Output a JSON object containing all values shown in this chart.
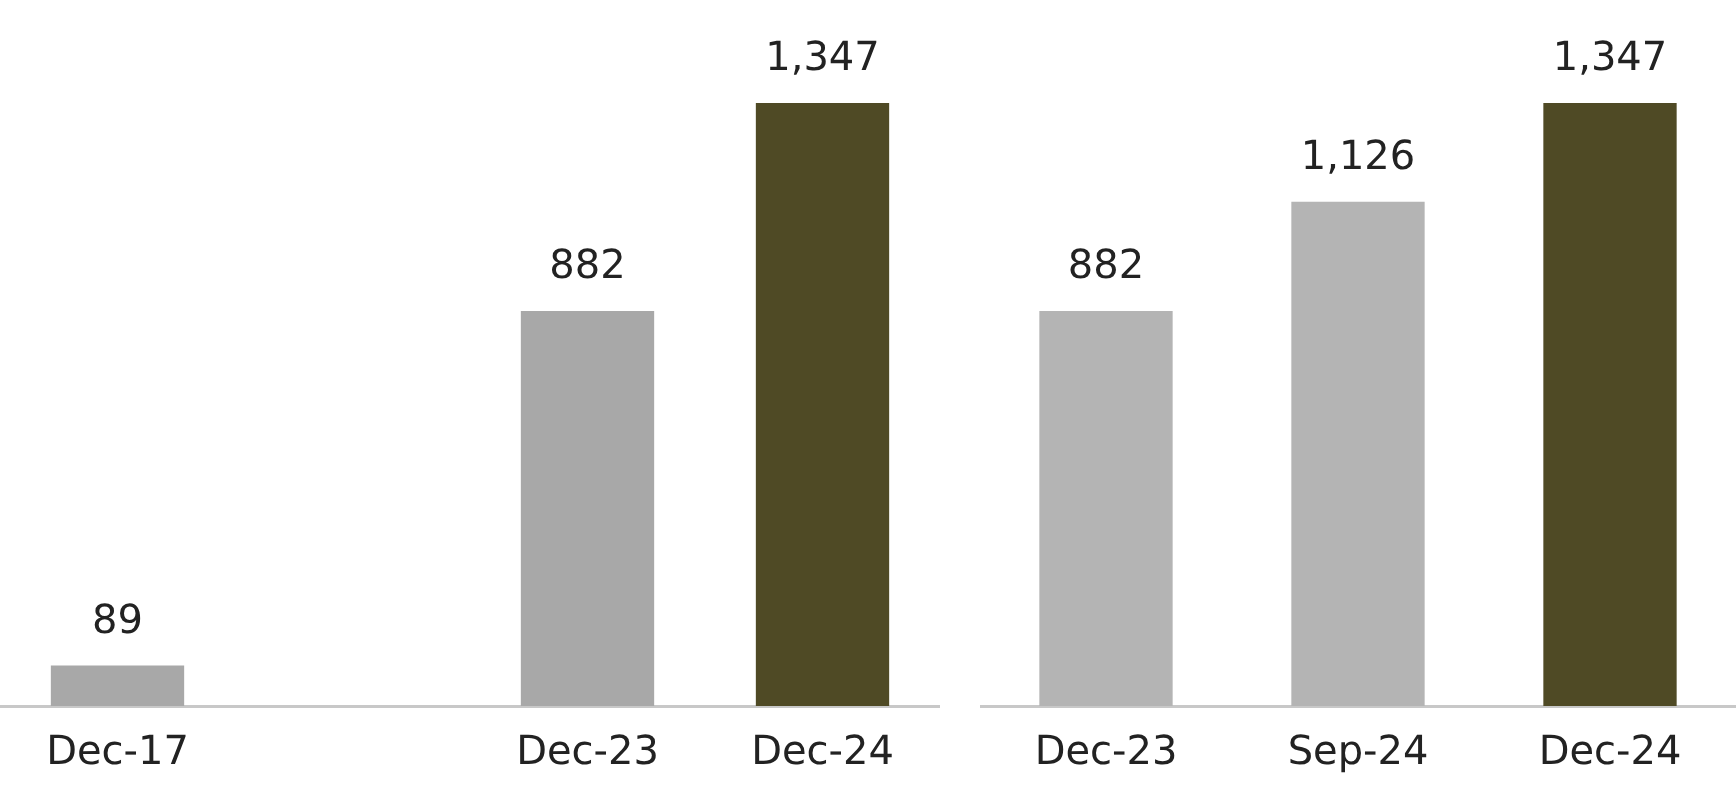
{
  "chart_data": [
    {
      "type": "bar",
      "categories": [
        "Dec-17",
        null,
        "Dec-23",
        "Dec-24"
      ],
      "values": [
        89,
        null,
        882,
        1347
      ],
      "value_labels": [
        "89",
        null,
        "882",
        "1,347"
      ],
      "colors": [
        "#a8a8a8",
        "#a8a8a8",
        "#a8a8a8",
        "#4f4a25"
      ],
      "tick_labels": "x",
      "grid": false,
      "legend": false
    },
    {
      "type": "bar",
      "categories": [
        "Dec-23",
        "Sep-24",
        "Dec-24"
      ],
      "values": [
        882,
        1126,
        1347
      ],
      "value_labels": [
        "882",
        "1,126",
        "1,347"
      ],
      "colors": [
        "#b4b4b4",
        "#b4b4b4",
        "#4f4a25"
      ],
      "tick_labels": "x",
      "grid": false,
      "legend": false
    }
  ]
}
